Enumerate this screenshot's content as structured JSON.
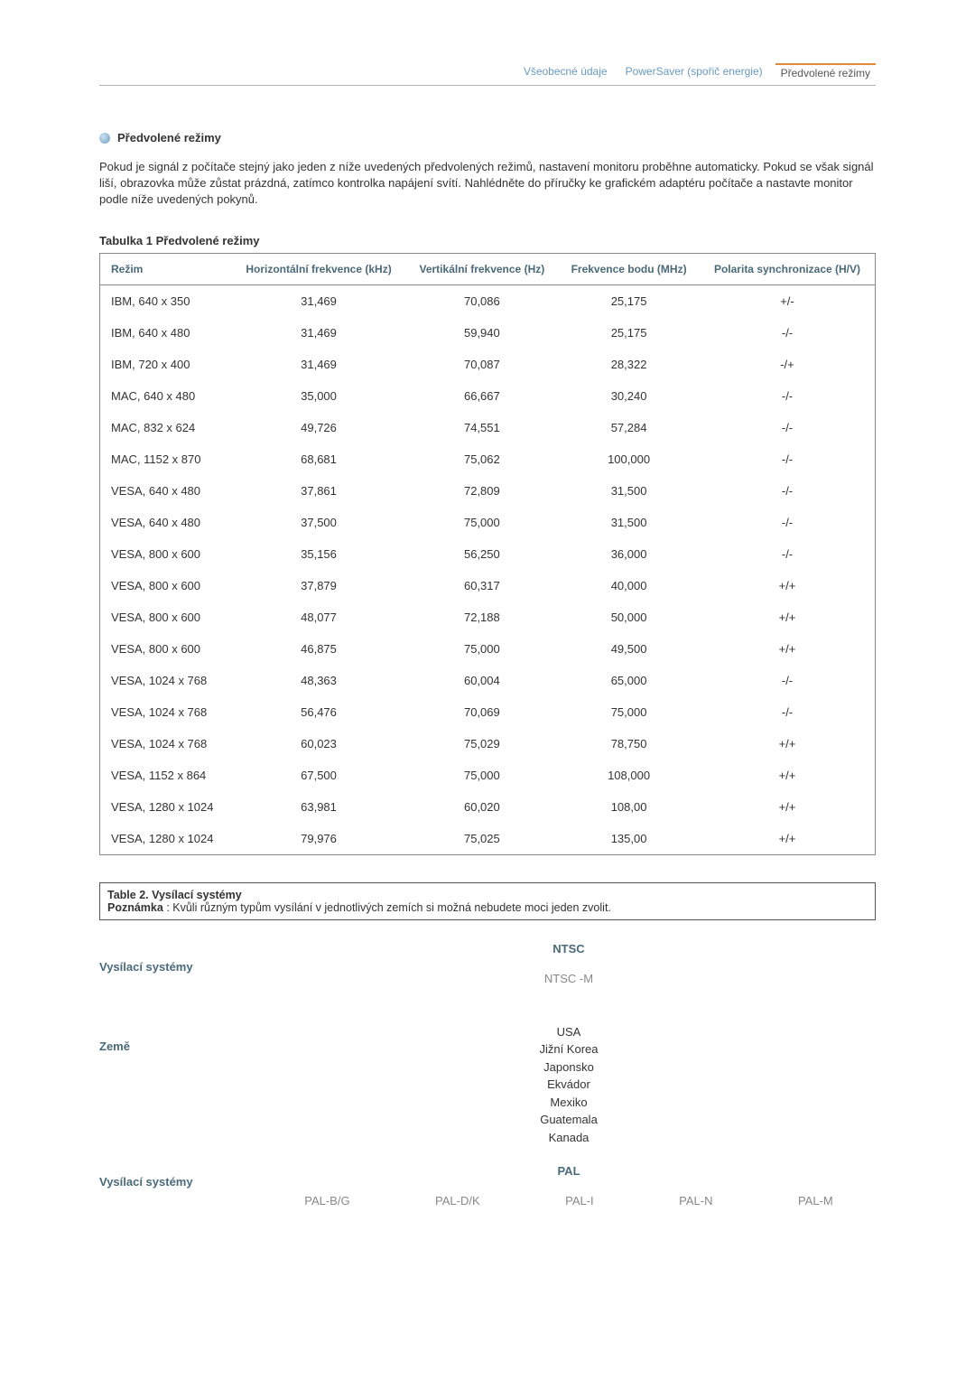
{
  "tabs": {
    "items": [
      {
        "label": "Všeobecné údaje"
      },
      {
        "label": "PowerSaver (spořič energie)"
      },
      {
        "label": "Předvolené režimy"
      }
    ]
  },
  "section": {
    "title": "Předvolené režimy"
  },
  "intro": "Pokud je signál z počítače stejný jako jeden z níže uvedených předvolených režimů, nastavení monitoru proběhne automaticky. Pokud se však signál liší, obrazovka může zůstat prázdná, zatímco kontrolka napájení svítí. Nahlédněte do příručky ke grafickém adaptéru počítače a nastavte monitor podle níže uvedených pokynů.",
  "table1": {
    "title": "Tabulka 1 Předvolené režimy",
    "headers": {
      "mode": "Režim",
      "hfreq": "Horizontální frekvence (kHz)",
      "vfreq": "Vertikální frekvence (Hz)",
      "pixclock": "Frekvence bodu (MHz)",
      "polarity": "Polarita synchronizace (H/V)"
    },
    "rows": [
      {
        "mode": "IBM, 640 x 350",
        "hfreq": "31,469",
        "vfreq": "70,086",
        "pixclock": "25,175",
        "polarity": "+/-"
      },
      {
        "mode": "IBM, 640 x 480",
        "hfreq": "31,469",
        "vfreq": "59,940",
        "pixclock": "25,175",
        "polarity": "-/-"
      },
      {
        "mode": "IBM, 720 x 400",
        "hfreq": "31,469",
        "vfreq": "70,087",
        "pixclock": "28,322",
        "polarity": "-/+"
      },
      {
        "mode": "MAC, 640 x 480",
        "hfreq": "35,000",
        "vfreq": "66,667",
        "pixclock": "30,240",
        "polarity": "-/-"
      },
      {
        "mode": "MAC, 832 x 624",
        "hfreq": "49,726",
        "vfreq": "74,551",
        "pixclock": "57,284",
        "polarity": "-/-"
      },
      {
        "mode": "MAC, 1152 x 870",
        "hfreq": "68,681",
        "vfreq": "75,062",
        "pixclock": "100,000",
        "polarity": "-/-"
      },
      {
        "mode": "VESA, 640 x 480",
        "hfreq": "37,861",
        "vfreq": "72,809",
        "pixclock": "31,500",
        "polarity": "-/-"
      },
      {
        "mode": "VESA, 640 x 480",
        "hfreq": "37,500",
        "vfreq": "75,000",
        "pixclock": "31,500",
        "polarity": "-/-"
      },
      {
        "mode": "VESA, 800 x 600",
        "hfreq": "35,156",
        "vfreq": "56,250",
        "pixclock": "36,000",
        "polarity": "-/-"
      },
      {
        "mode": "VESA, 800 x 600",
        "hfreq": "37,879",
        "vfreq": "60,317",
        "pixclock": "40,000",
        "polarity": "+/+"
      },
      {
        "mode": "VESA, 800 x 600",
        "hfreq": "48,077",
        "vfreq": "72,188",
        "pixclock": "50,000",
        "polarity": "+/+"
      },
      {
        "mode": "VESA, 800 x 600",
        "hfreq": "46,875",
        "vfreq": "75,000",
        "pixclock": "49,500",
        "polarity": "+/+"
      },
      {
        "mode": "VESA, 1024 x 768",
        "hfreq": "48,363",
        "vfreq": "60,004",
        "pixclock": "65,000",
        "polarity": "-/-"
      },
      {
        "mode": "VESA, 1024 x 768",
        "hfreq": "56,476",
        "vfreq": "70,069",
        "pixclock": "75,000",
        "polarity": "-/-"
      },
      {
        "mode": "VESA, 1024 x 768",
        "hfreq": "60,023",
        "vfreq": "75,029",
        "pixclock": "78,750",
        "polarity": "+/+"
      },
      {
        "mode": "VESA, 1152 x 864",
        "hfreq": "67,500",
        "vfreq": "75,000",
        "pixclock": "108,000",
        "polarity": "+/+"
      },
      {
        "mode": "VESA, 1280 x 1024",
        "hfreq": "63,981",
        "vfreq": "60,020",
        "pixclock": "108,00",
        "polarity": "+/+"
      },
      {
        "mode": "VESA, 1280 x 1024",
        "hfreq": "79,976",
        "vfreq": "75,025",
        "pixclock": "135,00",
        "polarity": "+/+"
      }
    ]
  },
  "table2": {
    "title": "Table 2. Vysílací systémy",
    "note_label": "Poznámka",
    "note_text": " : Kvůli různým typům vysílání v jednotlivých zemích si možná nebudete moci jeden zvolit."
  },
  "broadcast": {
    "systems_label": "Vysílací systémy",
    "country_label": "Země",
    "ntsc": {
      "header": "NTSC",
      "sub": "NTSC -M",
      "countries": [
        "USA",
        "Jižní Korea",
        "Japonsko",
        "Ekvádor",
        "Mexiko",
        "Guatemala",
        "Kanada"
      ]
    },
    "pal": {
      "header": "PAL",
      "variants": [
        "PAL-B/G",
        "PAL-D/K",
        "PAL-I",
        "PAL-N",
        "PAL-M"
      ]
    }
  },
  "style": {
    "accent_color": "#4a6a7a",
    "text_color": "#333333",
    "muted_color": "#888888",
    "border_color": "#888888",
    "tab_active_border": "#e08a3a",
    "background": "#ffffff",
    "font_size_base": 13
  }
}
